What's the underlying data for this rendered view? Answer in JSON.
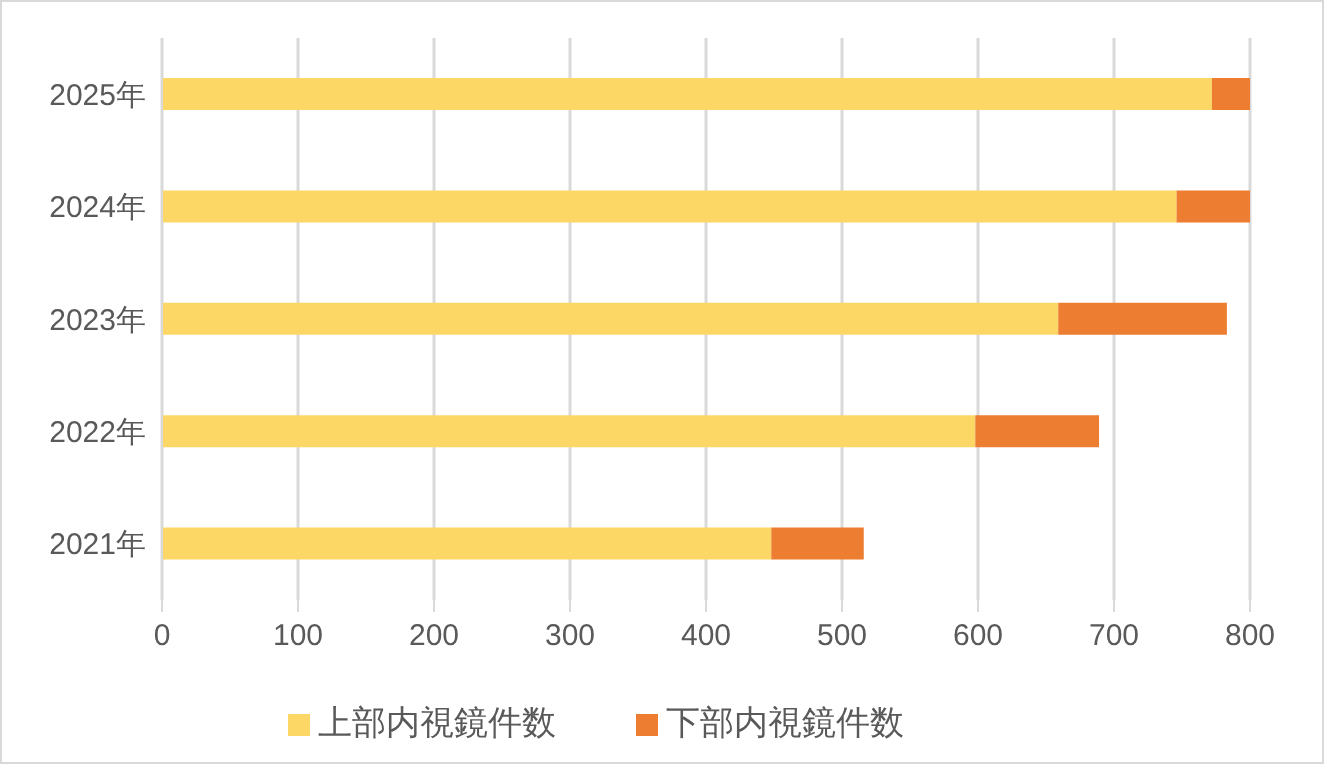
{
  "chart_data": {
    "type": "bar",
    "orientation": "horizontal",
    "stacked": true,
    "categories": [
      "2025年",
      "2024年",
      "2023年",
      "2022年",
      "2021年"
    ],
    "series": [
      {
        "name": "上部内視鏡件数",
        "color": "#fdd766",
        "values": [
          772,
          746,
          659,
          598,
          448
        ]
      },
      {
        "name": "下部内視鏡件数",
        "color": "#ed7d31",
        "values": [
          28,
          54,
          124,
          91,
          68
        ]
      }
    ],
    "xlim": [
      0,
      800
    ],
    "xticks": [
      0,
      100,
      200,
      300,
      400,
      500,
      600,
      700,
      800
    ],
    "grid": "x",
    "legend": "bottom"
  }
}
